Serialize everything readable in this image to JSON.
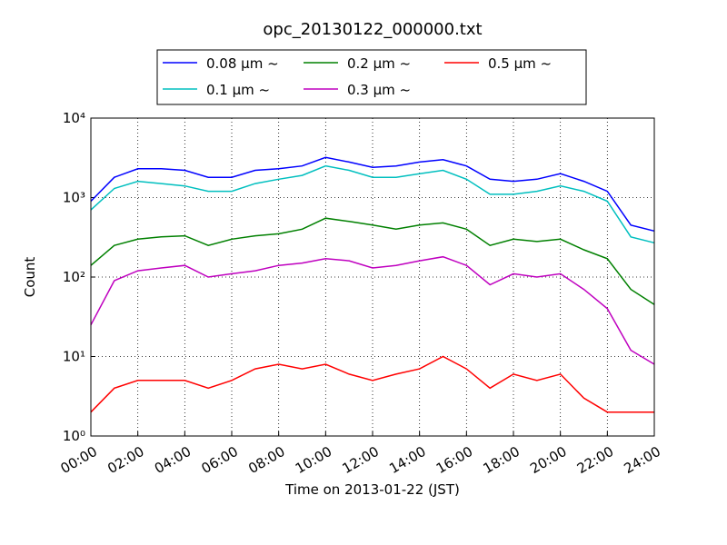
{
  "chart_data": {
    "type": "line",
    "title": "opc_20130122_000000.txt",
    "x_label": "Time on 2013-01-22 (JST)",
    "y_label": "Count",
    "x": [
      0,
      1,
      2,
      3,
      4,
      5,
      6,
      7,
      8,
      9,
      10,
      11,
      12,
      13,
      14,
      15,
      16,
      17,
      18,
      19,
      20,
      21,
      22,
      23,
      24
    ],
    "xlim": [
      0,
      24
    ],
    "xticks": [
      {
        "value": 0,
        "label": "00:00"
      },
      {
        "value": 2,
        "label": "02:00"
      },
      {
        "value": 4,
        "label": "04:00"
      },
      {
        "value": 6,
        "label": "06:00"
      },
      {
        "value": 8,
        "label": "08:00"
      },
      {
        "value": 10,
        "label": "10:00"
      },
      {
        "value": 12,
        "label": "12:00"
      },
      {
        "value": 14,
        "label": "14:00"
      },
      {
        "value": 16,
        "label": "16:00"
      },
      {
        "value": 18,
        "label": "18:00"
      },
      {
        "value": 20,
        "label": "20:00"
      },
      {
        "value": 22,
        "label": "22:00"
      },
      {
        "value": 24,
        "label": "24:00"
      }
    ],
    "ylim": [
      1,
      10000
    ],
    "yticks": [
      {
        "value": 1,
        "label": "10⁰"
      },
      {
        "value": 10,
        "label": "10¹"
      },
      {
        "value": 100,
        "label": "10²"
      },
      {
        "value": 1000,
        "label": "10³"
      },
      {
        "value": 10000,
        "label": "10⁴"
      }
    ],
    "log_y": true,
    "grid": true,
    "legend": "top",
    "series": [
      {
        "name": "0.08 μm ~",
        "color": "#0000ff",
        "values": [
          900,
          1800,
          2300,
          2300,
          2200,
          1800,
          1800,
          2200,
          2300,
          2500,
          3200,
          2800,
          2400,
          2500,
          2800,
          3000,
          2500,
          1700,
          1600,
          1700,
          2000,
          1600,
          1200,
          450,
          380
        ]
      },
      {
        "name": "0.1 μm ~",
        "color": "#00bfbf",
        "values": [
          700,
          1300,
          1600,
          1500,
          1400,
          1200,
          1200,
          1500,
          1700,
          1900,
          2500,
          2200,
          1800,
          1800,
          2000,
          2200,
          1700,
          1100,
          1100,
          1200,
          1400,
          1200,
          900,
          320,
          270
        ]
      },
      {
        "name": "0.2 μm ~",
        "color": "#008000",
        "values": [
          140,
          250,
          300,
          320,
          330,
          250,
          300,
          330,
          350,
          400,
          550,
          500,
          450,
          400,
          450,
          480,
          400,
          250,
          300,
          280,
          300,
          220,
          170,
          70,
          45
        ]
      },
      {
        "name": "0.3 μm ~",
        "color": "#bf00bf",
        "values": [
          25,
          90,
          120,
          130,
          140,
          100,
          110,
          120,
          140,
          150,
          170,
          160,
          130,
          140,
          160,
          180,
          140,
          80,
          110,
          100,
          110,
          70,
          40,
          12,
          8
        ]
      },
      {
        "name": "0.5 μm ~",
        "color": "#ff0000",
        "values": [
          2,
          4,
          5,
          5,
          5,
          4,
          5,
          7,
          8,
          7,
          8,
          6,
          5,
          6,
          7,
          10,
          7,
          4,
          6,
          5,
          6,
          3,
          2,
          2,
          2
        ]
      }
    ]
  }
}
